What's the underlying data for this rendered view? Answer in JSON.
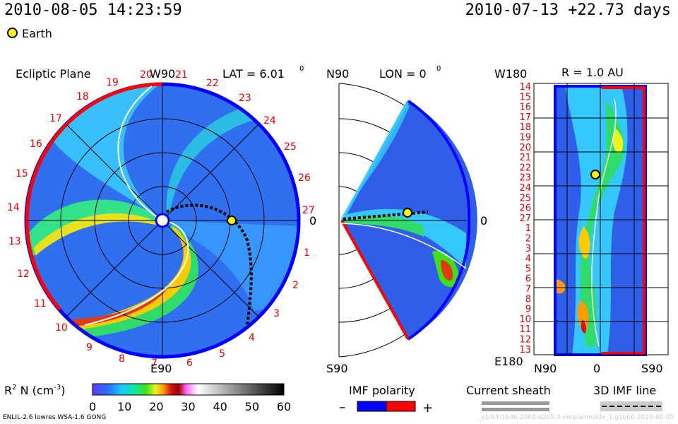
{
  "header": {
    "date_left": "2010-08-05 14:23:59",
    "date_right": "2010-07-13 +22.73 days",
    "legend_earth": "Earth"
  },
  "panels": {
    "ecliptic": {
      "title": "Ecliptic Plane",
      "top_label": "W90",
      "lat_label": "LAT = 6.01",
      "lat_sup": "0",
      "right_label": "0",
      "bottom_label": "E90",
      "ticks_top": [
        "20",
        "21",
        "22",
        "23",
        "24",
        "25",
        "26",
        "27"
      ],
      "ticks_right": [
        "1",
        "2",
        "3",
        "4",
        "5",
        "6",
        "7",
        "8",
        "9",
        "10",
        "11",
        "12",
        "13",
        "14",
        "15",
        "16",
        "17",
        "18",
        "19"
      ]
    },
    "meridional": {
      "top_left": "N90",
      "lon_label": "LON = 0",
      "lon_sup": "0",
      "right_label": "0",
      "bottom_left": "S90"
    },
    "synoptic": {
      "top_left": "W180",
      "title": "R = 1.0 AU",
      "bottom_left": "E180",
      "x_labels": [
        "N90",
        "0",
        "S90"
      ],
      "y_labels": [
        "14",
        "15",
        "16",
        "17",
        "18",
        "19",
        "20",
        "21",
        "22",
        "23",
        "24",
        "25",
        "26",
        "27",
        "1",
        "2",
        "3",
        "4",
        "5",
        "6",
        "7",
        "8",
        "9",
        "10",
        "11",
        "12",
        "13"
      ]
    }
  },
  "colorbar": {
    "label": "R",
    "label_sup": "2",
    "label_rest": " N (cm",
    "label_exp": "-3",
    "label_end": ")",
    "ticks": [
      "0",
      "10",
      "20",
      "30",
      "40",
      "50",
      "60"
    ]
  },
  "legends": {
    "imf_title": "IMF polarity",
    "imf_minus": "–",
    "imf_plus": "+",
    "sheath_title": "Current sheath",
    "imf_line_title": "3D IMF line"
  },
  "footer": {
    "left": "ENLIL-2.6 lowres WSA-1.6 GONG",
    "right": "_v1/84r1b46.2068-d2b5.4-emplaninside_1.g1b60   2010-08-05"
  },
  "colors": {
    "negative_polarity": "#0000ff",
    "positive_polarity": "#ff0000",
    "background_density": "#2a62e8"
  },
  "chart_data": {
    "type": "heatmap",
    "title": "",
    "xlabel": "",
    "ylabel": "",
    "colorbar_range": [
      0,
      60
    ],
    "colorbar_ticks": [
      0,
      10,
      20,
      30,
      40,
      50,
      60
    ],
    "units": "cm^-3",
    "quantity": "R^2 N",
    "earth_marker": true
  }
}
